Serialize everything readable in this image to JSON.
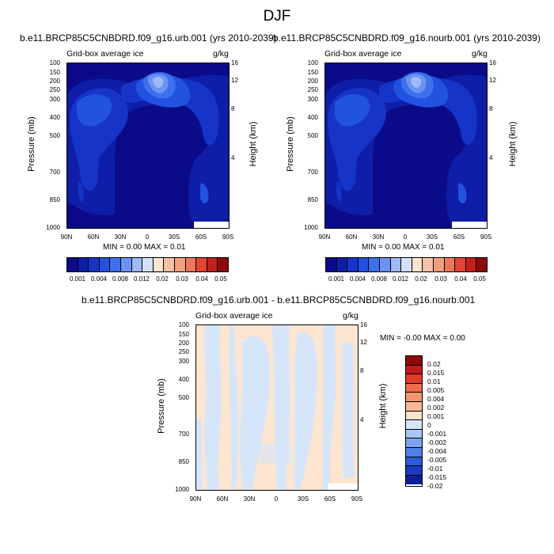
{
  "title": "DJF",
  "colors": {
    "seq": [
      "#0b0b8a",
      "#0e1ea8",
      "#1634c8",
      "#2152e0",
      "#3c70ec",
      "#6b93f2",
      "#9fbaf6",
      "#d3e2f9",
      "#fde5cf",
      "#f6c2a5",
      "#f1a07e",
      "#eb7858",
      "#e24530",
      "#c4201b",
      "#8c0a0a"
    ],
    "div": [
      "#8c0a0a",
      "#c01a1a",
      "#e23b2a",
      "#ef6b4a",
      "#f5946e",
      "#f9b899",
      "#fde5cf",
      "#d6e6fa",
      "#a9c6f5",
      "#7ba3ef",
      "#4f80e6",
      "#2c5cd9",
      "#1a3bbd",
      "#0d1f94"
    ]
  },
  "chart_data": [
    {
      "type": "contour",
      "title": "b.e11.BRCP85C5CNBDRD.f09_g16.urb.001 (yrs 2010-2039)",
      "subtitle_left": "Grid-box average ice",
      "subtitle_right": "g/kg",
      "xlabel": "",
      "ylabel": "Pressure (mb)",
      "y2label": "Height (km)",
      "x_ticks": [
        "90N",
        "60N",
        "30N",
        "0",
        "30S",
        "60S",
        "90S"
      ],
      "y_ticks": [
        100,
        150,
        200,
        250,
        300,
        400,
        500,
        700,
        850,
        1000
      ],
      "y2_ticks": [
        16,
        12,
        8,
        4
      ],
      "min_text": "MIN =   0.00   MAX =   0.01",
      "levels": [
        "0.001",
        "0.004",
        "0.008",
        "0.012",
        "0.02",
        "0.03",
        "0.04",
        "0.05"
      ]
    },
    {
      "type": "contour",
      "title": "b.e11.BRCP85C5CNBDRD.f09_g16.nourb.001 (yrs 2010-2039)",
      "subtitle_left": "Grid-box average ice",
      "subtitle_right": "g/kg",
      "xlabel": "",
      "ylabel": "Pressure (mb)",
      "y2label": "Height (km)",
      "x_ticks": [
        "90N",
        "60N",
        "30N",
        "0",
        "30S",
        "60S",
        "90S"
      ],
      "y_ticks": [
        100,
        150,
        200,
        250,
        300,
        400,
        500,
        700,
        850,
        1000
      ],
      "y2_ticks": [
        16,
        12,
        8,
        4
      ],
      "min_text": "MIN =   0.00   MAX =   0.01",
      "levels": [
        "0.001",
        "0.004",
        "0.008",
        "0.012",
        "0.02",
        "0.03",
        "0.04",
        "0.05"
      ]
    },
    {
      "type": "contour",
      "title": "b.e11.BRCP85C5CNBDRD.f09_g16.urb.001 - b.e11.BRCP85C5CNBDRD.f09_g16.nourb.001",
      "subtitle_left": "Grid-box average ice",
      "subtitle_right": "g/kg",
      "xlabel": "",
      "ylabel": "Pressure (mb)",
      "y2label": "Height (km)",
      "x_ticks": [
        "90N",
        "60N",
        "30N",
        "0",
        "30S",
        "60S",
        "90S"
      ],
      "y_ticks": [
        100,
        150,
        200,
        250,
        300,
        400,
        500,
        700,
        850,
        1000
      ],
      "y2_ticks": [
        16,
        12,
        8,
        4
      ],
      "min_text": "MIN =  -0.00   MAX =   0.00",
      "levels": [
        "0.02",
        "0.015",
        "0.01",
        "0.005",
        "0.004",
        "0.002",
        "0.001",
        "0",
        "-0.001",
        "-0.002",
        "-0.004",
        "-0.005",
        "-0.01",
        "-0.015",
        "-0.02"
      ]
    }
  ]
}
